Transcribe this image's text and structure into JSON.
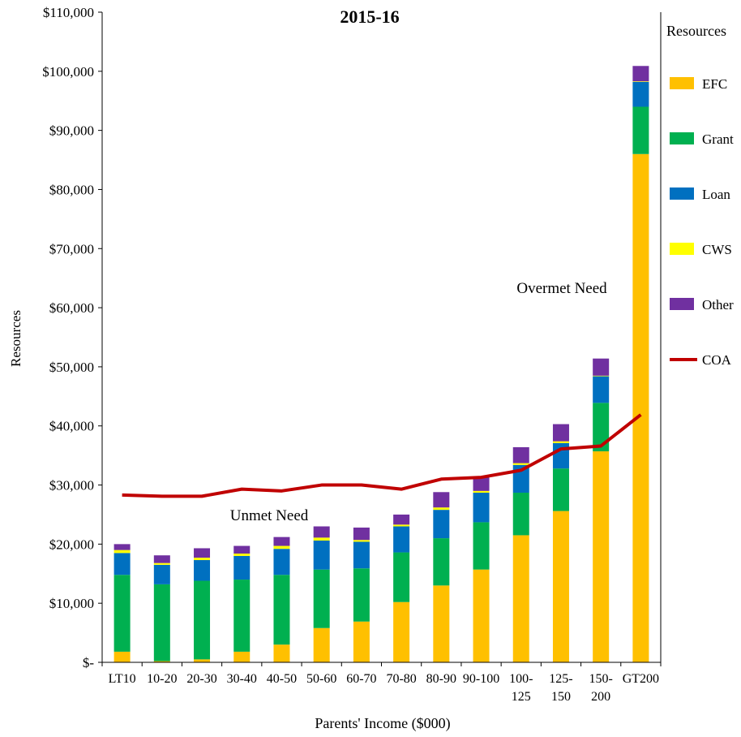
{
  "chart_data": {
    "type": "bar",
    "stacked": true,
    "title": "2015-16",
    "xlabel": "Parents' Income ($000)",
    "ylabel": "Resources",
    "ylim": [
      0,
      110000
    ],
    "y_ticks": [
      0,
      10000,
      20000,
      30000,
      40000,
      50000,
      60000,
      70000,
      80000,
      90000,
      100000,
      110000
    ],
    "y_tick_labels": [
      "$-",
      "$10,000",
      "$20,000",
      "$30,000",
      "$40,000",
      "$50,000",
      "$60,000",
      "$70,000",
      "$80,000",
      "$90,000",
      "$100,000",
      "$110,000"
    ],
    "categories": [
      "LT10",
      "10-20",
      "20-30",
      "30-40",
      "40-50",
      "50-60",
      "60-70",
      "70-80",
      "80-90",
      "90-100",
      "100-125",
      "125-150",
      "150-200",
      "GT200"
    ],
    "category_labels": [
      [
        "LT10"
      ],
      [
        "10-20"
      ],
      [
        "20-30"
      ],
      [
        "30-40"
      ],
      [
        "40-50"
      ],
      [
        "50-60"
      ],
      [
        "60-70"
      ],
      [
        "70-80"
      ],
      [
        "80-90"
      ],
      [
        "90-100"
      ],
      [
        "100-",
        "125"
      ],
      [
        "125-",
        "150"
      ],
      [
        "150-",
        "200"
      ],
      [
        "GT200"
      ]
    ],
    "series": [
      {
        "name": "EFC",
        "color": "#FFC000",
        "values": [
          1800,
          200,
          500,
          1800,
          3000,
          5800,
          6900,
          10200,
          13000,
          15700,
          21500,
          25600,
          35700,
          86000
        ]
      },
      {
        "name": "Grant",
        "color": "#00B050",
        "values": [
          13000,
          13000,
          13300,
          12200,
          11800,
          9900,
          9000,
          8400,
          8000,
          8000,
          7200,
          7200,
          8200,
          8000
        ]
      },
      {
        "name": "Loan",
        "color": "#0070C0",
        "values": [
          3700,
          3300,
          3500,
          4000,
          4400,
          4900,
          4500,
          4400,
          4800,
          5000,
          4700,
          4300,
          4500,
          4200
        ]
      },
      {
        "name": "CWS",
        "color": "#FFFF00",
        "values": [
          500,
          300,
          400,
          400,
          500,
          500,
          300,
          300,
          400,
          300,
          300,
          300,
          100,
          100
        ]
      },
      {
        "name": "Other",
        "color": "#7030A0",
        "values": [
          1000,
          1300,
          1600,
          1300,
          1500,
          1900,
          2100,
          1700,
          2600,
          2300,
          2700,
          2900,
          2900,
          2600
        ]
      }
    ],
    "line_series": {
      "name": "COA",
      "color": "#C00000",
      "values": [
        28300,
        28100,
        28100,
        29300,
        29000,
        30000,
        30000,
        29300,
        31000,
        31300,
        32500,
        36100,
        36600,
        41900
      ]
    },
    "legend_title": "Resources",
    "legend_position": "right",
    "annotations": [
      "Unmet Need",
      "Overmet Need"
    ],
    "grid": false
  }
}
